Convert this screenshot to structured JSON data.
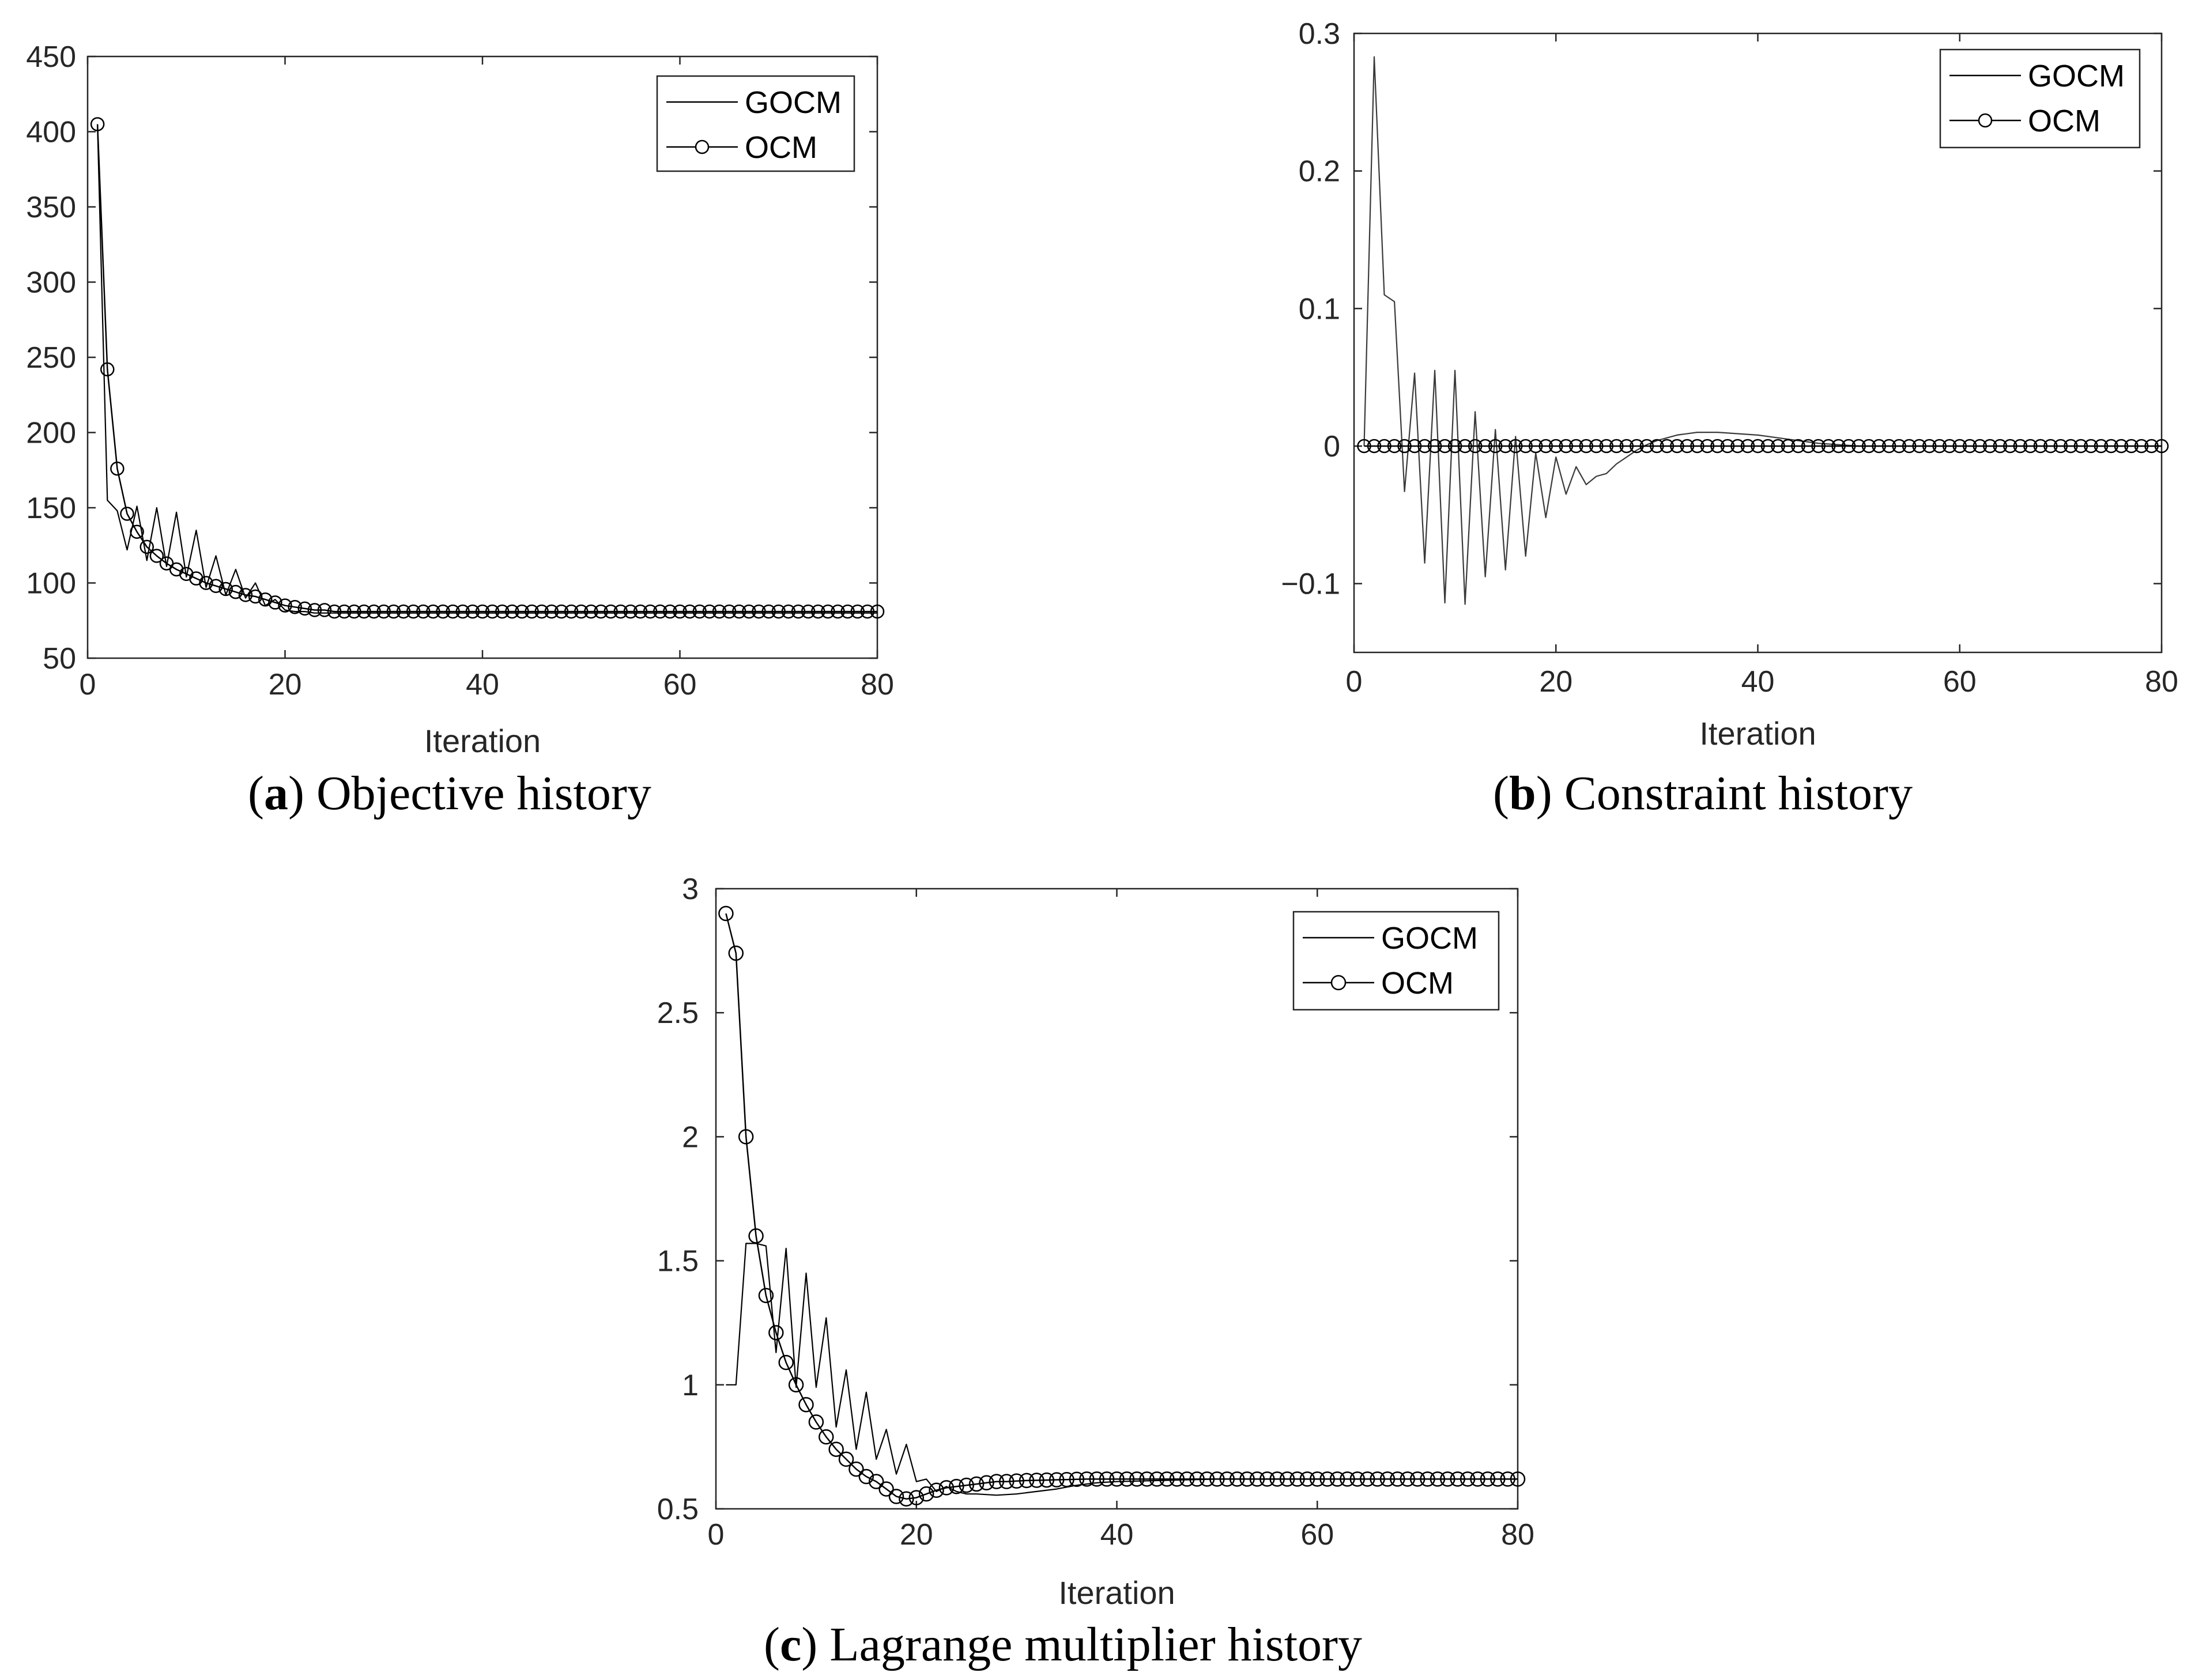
{
  "figure": {
    "panels": [
      {
        "id": "a",
        "caption_letter": "a",
        "caption_text": "Objective history"
      },
      {
        "id": "b",
        "caption_letter": "b",
        "caption_text": "Constraint history"
      },
      {
        "id": "c",
        "caption_letter": "c",
        "caption_text": "Lagrange multiplier history"
      }
    ]
  },
  "chart_data": [
    {
      "type": "line",
      "xlabel": "Iteration",
      "ylabel": "",
      "xlim": [
        0,
        80
      ],
      "ylim": [
        50,
        450
      ],
      "xticks": [
        0,
        20,
        40,
        60,
        80
      ],
      "yticks": [
        50,
        100,
        150,
        200,
        250,
        300,
        350,
        400,
        450
      ],
      "ytick_labels": [
        "50",
        "100",
        "150",
        "200",
        "250",
        "300",
        "350",
        "400",
        "450"
      ],
      "legend": "top-right",
      "grid": false,
      "series": [
        {
          "name": "GOCM",
          "marker": "none",
          "x": [
            1,
            2,
            3,
            4,
            5,
            6,
            7,
            8,
            9,
            10,
            11,
            12,
            13,
            14,
            15,
            16,
            17,
            18,
            19,
            20,
            21,
            22,
            23,
            24,
            25,
            30,
            40,
            50,
            60,
            70,
            80
          ],
          "values": [
            405,
            155,
            148,
            122,
            151,
            115,
            150,
            111,
            147,
            104,
            135,
            97,
            118,
            92,
            109,
            90,
            100,
            85,
            89,
            82,
            81,
            81,
            80,
            80,
            80,
            80,
            80,
            80,
            80,
            80,
            80
          ]
        },
        {
          "name": "OCM",
          "marker": "circle",
          "x": "1..80",
          "values": [
            405,
            242,
            176,
            146,
            134,
            124,
            118,
            113,
            109,
            106,
            103,
            100,
            98,
            96,
            94,
            92,
            91,
            89,
            87,
            85,
            84,
            83,
            82,
            82,
            81,
            81,
            81,
            81,
            81,
            81,
            81,
            81,
            81,
            81,
            81,
            81,
            81,
            81,
            81,
            81,
            81,
            81,
            81,
            81,
            81,
            81,
            81,
            81,
            81,
            81,
            81,
            81,
            81,
            81,
            81,
            81,
            81,
            81,
            81,
            81,
            81,
            81,
            81,
            81,
            81,
            81,
            81,
            81,
            81,
            81,
            81,
            81,
            81,
            81,
            81,
            81,
            81,
            81,
            81,
            81
          ]
        }
      ]
    },
    {
      "type": "line",
      "xlabel": "Iteration",
      "ylabel": "",
      "xlim": [
        0,
        80
      ],
      "ylim": [
        -0.15,
        0.3
      ],
      "xticks": [
        0,
        20,
        40,
        60,
        80
      ],
      "yticks": [
        -0.1,
        0,
        0.1,
        0.2,
        0.3
      ],
      "ytick_labels": [
        "−0.1",
        "0",
        "0.1",
        "0.2",
        "0.3"
      ],
      "legend": "top-right",
      "grid": false,
      "series": [
        {
          "name": "GOCM",
          "marker": "none",
          "x": [
            1,
            2,
            3,
            4,
            5,
            6,
            7,
            8,
            9,
            10,
            11,
            12,
            13,
            14,
            15,
            16,
            17,
            18,
            19,
            20,
            21,
            22,
            23,
            24,
            25,
            26,
            27,
            28,
            29,
            30,
            32,
            34,
            36,
            38,
            40,
            42,
            44,
            46,
            48,
            50,
            60,
            70,
            80
          ],
          "values": [
            0,
            0.283,
            0.11,
            0.105,
            -0.033,
            0.053,
            -0.085,
            0.055,
            -0.114,
            0.055,
            -0.115,
            0.025,
            -0.095,
            0.012,
            -0.09,
            0.007,
            -0.08,
            -0.005,
            -0.052,
            -0.008,
            -0.035,
            -0.015,
            -0.028,
            -0.022,
            -0.02,
            -0.013,
            -0.008,
            -0.003,
            0.001,
            0.004,
            0.008,
            0.01,
            0.01,
            0.009,
            0.008,
            0.006,
            0.004,
            0.002,
            0.001,
            0,
            0,
            0,
            0
          ]
        },
        {
          "name": "OCM",
          "marker": "circle",
          "x": "1..80",
          "values": "all 0"
        }
      ]
    },
    {
      "type": "line",
      "xlabel": "Iteration",
      "ylabel": "",
      "xlim": [
        0,
        80
      ],
      "ylim": [
        0.5,
        3
      ],
      "xticks": [
        0,
        20,
        40,
        60,
        80
      ],
      "yticks": [
        0.5,
        1,
        1.5,
        2,
        2.5,
        3
      ],
      "ytick_labels": [
        "0.5",
        "1",
        "1.5",
        "2",
        "2.5",
        "3"
      ],
      "legend": "top-right",
      "grid": false,
      "series": [
        {
          "name": "GOCM",
          "marker": "none",
          "x": [
            1,
            2,
            3,
            4,
            5,
            6,
            7,
            8,
            9,
            10,
            11,
            12,
            13,
            14,
            15,
            16,
            17,
            18,
            19,
            20,
            21,
            22,
            23,
            24,
            25,
            26,
            28,
            30,
            32,
            34,
            36,
            38,
            40,
            45,
            50,
            60,
            70,
            80
          ],
          "values": [
            1.0,
            1.0,
            1.57,
            1.57,
            1.56,
            1.13,
            1.55,
            0.99,
            1.45,
            0.99,
            1.27,
            0.83,
            1.06,
            0.74,
            0.97,
            0.7,
            0.82,
            0.64,
            0.76,
            0.61,
            0.62,
            0.57,
            0.59,
            0.57,
            0.56,
            0.56,
            0.555,
            0.56,
            0.57,
            0.58,
            0.595,
            0.605,
            0.61,
            0.615,
            0.62,
            0.62,
            0.62,
            0.62
          ]
        },
        {
          "name": "OCM",
          "marker": "circle",
          "x": "1..80",
          "values": [
            2.9,
            2.74,
            2.0,
            1.6,
            1.36,
            1.21,
            1.09,
            1.0,
            0.92,
            0.85,
            0.79,
            0.74,
            0.7,
            0.66,
            0.63,
            0.61,
            0.58,
            0.55,
            0.54,
            0.545,
            0.56,
            0.575,
            0.585,
            0.59,
            0.595,
            0.6,
            0.605,
            0.61,
            0.61,
            0.612,
            0.614,
            0.615,
            0.616,
            0.617,
            0.618,
            0.619,
            0.62,
            0.62,
            0.62,
            0.62,
            0.62,
            0.62,
            0.62,
            0.62,
            0.62,
            0.62,
            0.62,
            0.62,
            0.62,
            0.62,
            0.62,
            0.62,
            0.62,
            0.62,
            0.62,
            0.62,
            0.62,
            0.62,
            0.62,
            0.62,
            0.62,
            0.62,
            0.62,
            0.62,
            0.62,
            0.62,
            0.62,
            0.62,
            0.62,
            0.62,
            0.62,
            0.62,
            0.62,
            0.62,
            0.62,
            0.62,
            0.62,
            0.62,
            0.62,
            0.62
          ]
        }
      ]
    }
  ]
}
